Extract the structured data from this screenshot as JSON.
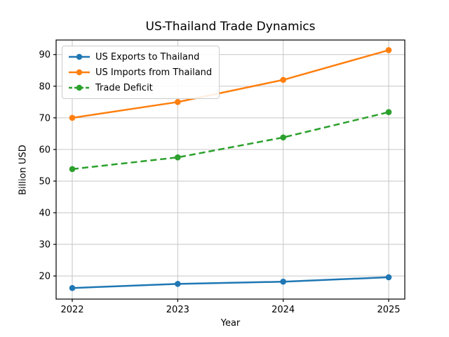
{
  "chart_data": {
    "type": "line",
    "title": "US-Thailand Trade Dynamics",
    "xlabel": "Year",
    "ylabel": "Billion USD",
    "x": [
      2022,
      2023,
      2024,
      2025
    ],
    "x_tick_labels": [
      "2022",
      "2023",
      "2024",
      "2025"
    ],
    "yticks": [
      20,
      30,
      40,
      50,
      60,
      70,
      80,
      90
    ],
    "ylim": [
      12.7,
      94.6
    ],
    "grid": true,
    "legend_position": "upper left",
    "series": [
      {
        "name": "US Exports to Thailand",
        "values": [
          16.2,
          17.5,
          18.2,
          19.6
        ],
        "color": "#1f77b4",
        "line_style": "solid",
        "marker": "circle"
      },
      {
        "name": "US Imports from Thailand",
        "values": [
          70.0,
          75.0,
          82.0,
          91.4
        ],
        "color": "#ff7f0e",
        "line_style": "solid",
        "marker": "circle"
      },
      {
        "name": "Trade Deficit",
        "values": [
          53.8,
          57.5,
          63.8,
          71.8
        ],
        "color": "#2ca02c",
        "line_style": "dashed",
        "marker": "circle"
      }
    ],
    "grid_color": "#c6c6c6",
    "spine_color": "#000000",
    "text_color": "#000000",
    "background_color": "#ffffff"
  }
}
